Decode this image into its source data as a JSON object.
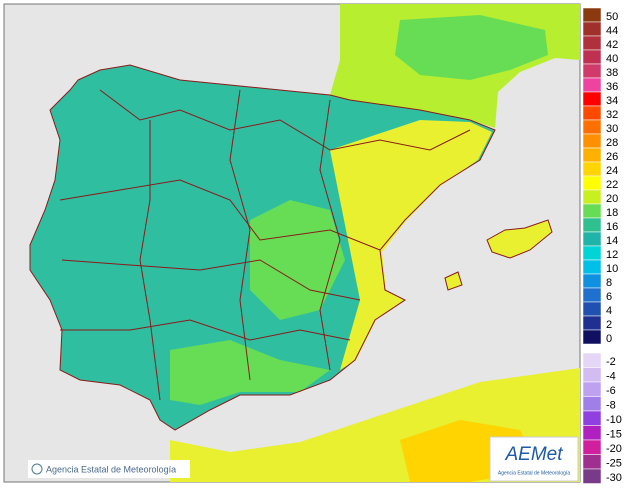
{
  "legend": {
    "items": [
      {
        "label": "50",
        "color": "#8b3a0f"
      },
      {
        "label": "44",
        "color": "#a0302a"
      },
      {
        "label": "42",
        "color": "#b0303c"
      },
      {
        "label": "40",
        "color": "#c03050"
      },
      {
        "label": "38",
        "color": "#d03a6a"
      },
      {
        "label": "36",
        "color": "#ee44a0"
      },
      {
        "label": "34",
        "color": "#ff0000"
      },
      {
        "label": "32",
        "color": "#ff4a00"
      },
      {
        "label": "30",
        "color": "#ff7000"
      },
      {
        "label": "28",
        "color": "#ff9000"
      },
      {
        "label": "26",
        "color": "#ffb000"
      },
      {
        "label": "24",
        "color": "#ffd400"
      },
      {
        "label": "22",
        "color": "#ffff00"
      },
      {
        "label": "20",
        "color": "#c8f020"
      },
      {
        "label": "18",
        "color": "#66dd55"
      },
      {
        "label": "16",
        "color": "#30c090"
      },
      {
        "label": "14",
        "color": "#20b4a8"
      },
      {
        "label": "12",
        "color": "#00d4d4"
      },
      {
        "label": "10",
        "color": "#00c0e8"
      },
      {
        "label": "8",
        "color": "#1090e0"
      },
      {
        "label": "6",
        "color": "#2070d0"
      },
      {
        "label": "4",
        "color": "#2050b0"
      },
      {
        "label": "2",
        "color": "#203090"
      },
      {
        "label": "0",
        "color": "#101060"
      }
    ],
    "negative": [
      {
        "label": "-2",
        "color": "#e4d6f4"
      },
      {
        "label": "-4",
        "color": "#d2bcf2"
      },
      {
        "label": "-6",
        "color": "#bea2f0"
      },
      {
        "label": "-8",
        "color": "#a080e8"
      },
      {
        "label": "-10",
        "color": "#9040e0"
      },
      {
        "label": "-15",
        "color": "#b020c0"
      },
      {
        "label": "-20",
        "color": "#d020a0"
      },
      {
        "label": "-25",
        "color": "#a03090"
      },
      {
        "label": "-30",
        "color": "#7a3a8a"
      }
    ]
  },
  "credit": "Agencia Estatal de Meteorología",
  "logo": {
    "name": "AEMet",
    "subtitle": "Agencia Estatal de Meteorología"
  }
}
